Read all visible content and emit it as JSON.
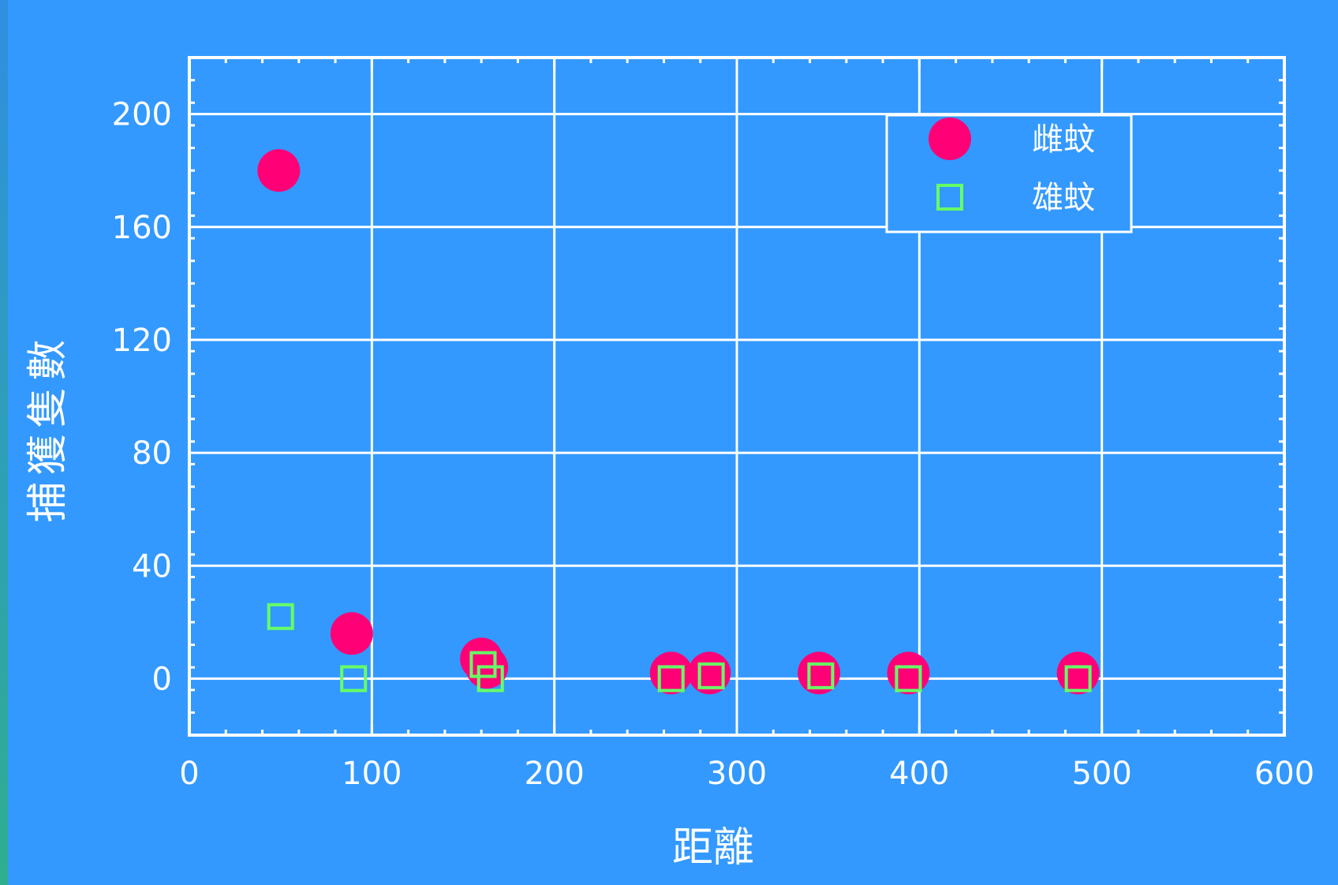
{
  "chart_data": {
    "type": "scatter",
    "xlabel": "距離",
    "ylabel": "捕獲隻數",
    "xlim": [
      0,
      600
    ],
    "ylim": [
      -20,
      220
    ],
    "xticks": [
      0,
      100,
      200,
      300,
      400,
      500,
      600
    ],
    "yticks": [
      0,
      40,
      80,
      120,
      160,
      200
    ],
    "grid": true,
    "legend_position": "top-right",
    "series": [
      {
        "name": "雌蚊",
        "marker": "filled-circle",
        "color": "#ff0077",
        "x": [
          49,
          89,
          160,
          163,
          264,
          285,
          345,
          394,
          487
        ],
        "y": [
          180,
          16,
          7,
          4,
          2,
          2,
          2,
          2,
          2
        ]
      },
      {
        "name": "雄蚊",
        "marker": "open-square",
        "color": "#66ff66",
        "x": [
          50,
          90,
          161,
          165,
          264,
          286,
          346,
          394,
          487
        ],
        "y": [
          22,
          0,
          5,
          0,
          0,
          1,
          1,
          0,
          0
        ]
      }
    ]
  },
  "colors": {
    "background": "#3399ff",
    "grid": "#ffffff",
    "female_marker": "#ff0077",
    "male_marker": "#66ff66"
  }
}
